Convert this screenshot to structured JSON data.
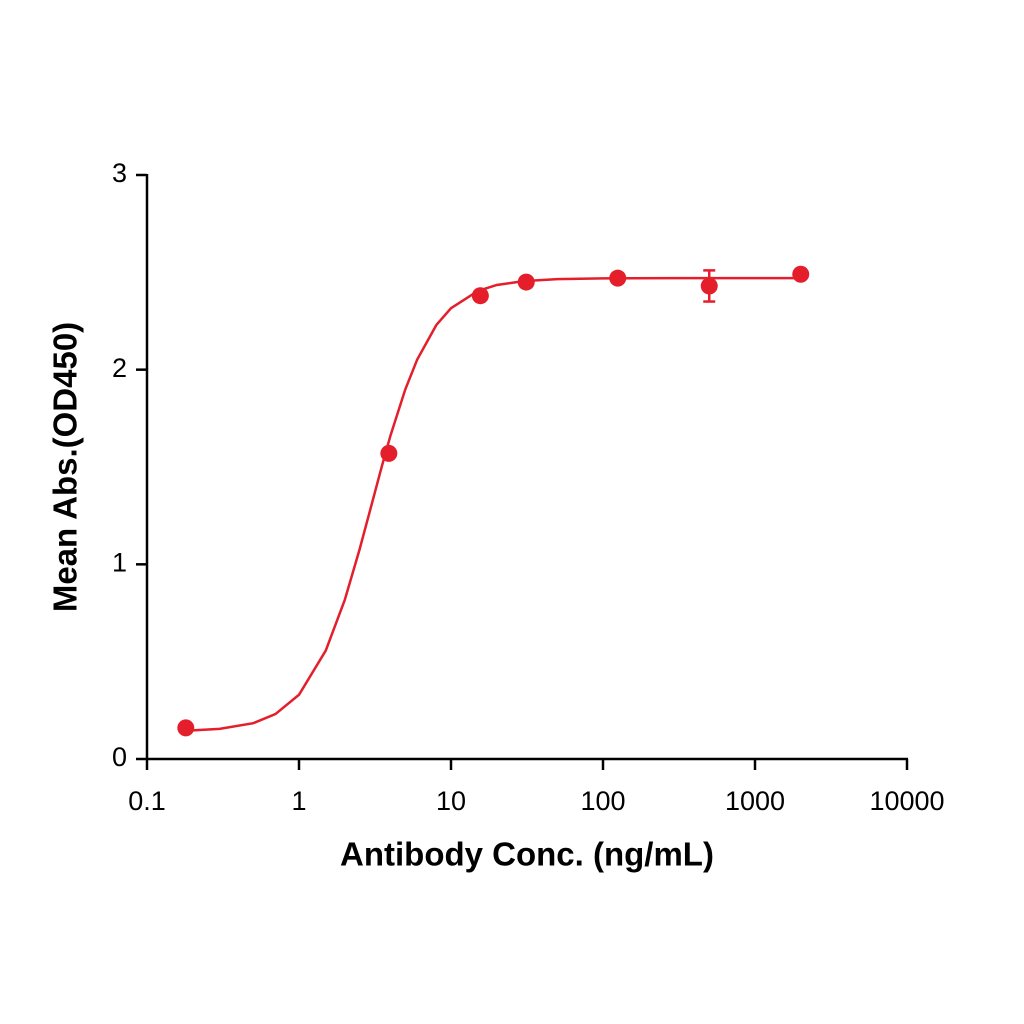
{
  "chart_data": {
    "type": "scatter",
    "x_label": "Antibody Conc. (ng/mL)",
    "y_label": "Mean Abs.(OD450)",
    "x": [
      0.18,
      3.9,
      15.6,
      31.25,
      125,
      500,
      2000
    ],
    "values": [
      0.16,
      1.57,
      2.38,
      2.45,
      2.47,
      2.43,
      2.49
    ],
    "errors": [
      null,
      null,
      null,
      null,
      null,
      0.08,
      null
    ],
    "fit": {
      "x": [
        0.18,
        0.3,
        0.5,
        0.7,
        1,
        1.5,
        2,
        2.5,
        3,
        3.5,
        4,
        5,
        6,
        8,
        10,
        15,
        20,
        30,
        50,
        100,
        300,
        2000
      ],
      "values": [
        0.145,
        0.155,
        0.184,
        0.231,
        0.33,
        0.557,
        0.817,
        1.075,
        1.305,
        1.501,
        1.662,
        1.898,
        2.053,
        2.229,
        2.316,
        2.404,
        2.435,
        2.455,
        2.465,
        2.469,
        2.47,
        2.47
      ]
    },
    "color": "#e41e2b",
    "xscale": "log",
    "xlim": [
      0.1,
      10000
    ],
    "xticks": [
      0.1,
      1,
      10,
      100,
      1000,
      10000
    ],
    "ylim": [
      0,
      3
    ],
    "yticks": [
      0,
      1,
      2,
      3
    ]
  }
}
